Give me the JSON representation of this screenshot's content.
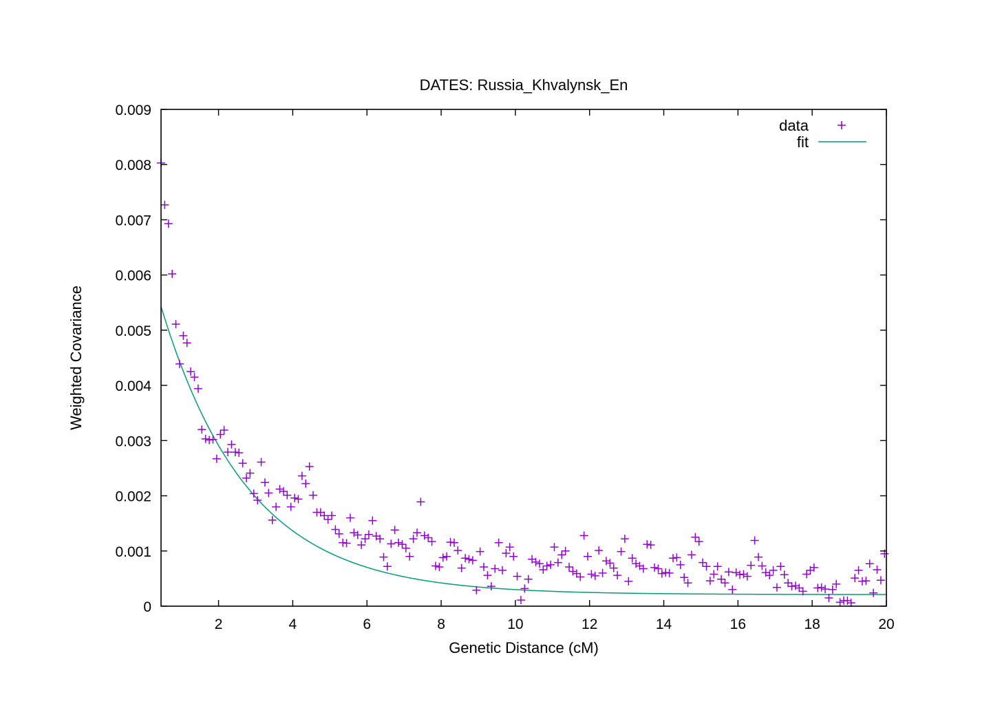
{
  "chart_data": {
    "type": "scatter",
    "title": "DATES: Russia_Khvalynsk_En",
    "xlabel": "Genetic Distance (cM)",
    "ylabel": "Weighted Covariance",
    "xlim": [
      0.45,
      20
    ],
    "ylim": [
      0,
      0.009
    ],
    "xticks": [
      2,
      4,
      6,
      8,
      10,
      12,
      14,
      16,
      18,
      20
    ],
    "yticks": [
      0,
      0.001,
      0.002,
      0.003,
      0.004,
      0.005,
      0.006,
      0.007,
      0.008,
      0.009
    ],
    "xtick_labels": [
      "2",
      "4",
      "6",
      "8",
      "10",
      "12",
      "14",
      "16",
      "18",
      "20"
    ],
    "ytick_labels": [
      "0",
      "0.001",
      "0.002",
      "0.003",
      "0.004",
      "0.005",
      "0.006",
      "0.007",
      "0.008",
      "0.009"
    ],
    "grid": false,
    "legend_position": "top-right",
    "colors": {
      "data": "#9400d3",
      "fit": "#009e73"
    },
    "series": [
      {
        "name": "data",
        "kind": "points",
        "marker": "plus",
        "x": [
          0.45,
          0.55,
          0.65,
          0.75,
          0.85,
          0.95,
          1.05,
          1.15,
          1.25,
          1.35,
          1.45,
          1.55,
          1.65,
          1.75,
          1.85,
          1.95,
          2.05,
          2.15,
          2.25,
          2.35,
          2.45,
          2.55,
          2.65,
          2.75,
          2.85,
          2.95,
          3.05,
          3.15,
          3.25,
          3.35,
          3.45,
          3.55,
          3.65,
          3.75,
          3.85,
          3.95,
          4.05,
          4.15,
          4.25,
          4.35,
          4.45,
          4.55,
          4.65,
          4.75,
          4.85,
          4.95,
          5.05,
          5.15,
          5.25,
          5.35,
          5.45,
          5.55,
          5.65,
          5.75,
          5.85,
          5.95,
          6.05,
          6.15,
          6.25,
          6.35,
          6.45,
          6.55,
          6.65,
          6.75,
          6.85,
          6.95,
          7.05,
          7.15,
          7.25,
          7.35,
          7.45,
          7.55,
          7.65,
          7.75,
          7.85,
          7.95,
          8.05,
          8.15,
          8.25,
          8.35,
          8.45,
          8.55,
          8.65,
          8.75,
          8.85,
          8.95,
          9.05,
          9.15,
          9.25,
          9.35,
          9.45,
          9.55,
          9.65,
          9.75,
          9.85,
          9.95,
          10.05,
          10.15,
          10.25,
          10.35,
          10.45,
          10.55,
          10.65,
          10.75,
          10.85,
          10.95,
          11.05,
          11.15,
          11.25,
          11.35,
          11.45,
          11.55,
          11.65,
          11.75,
          11.85,
          11.95,
          12.05,
          12.15,
          12.25,
          12.35,
          12.45,
          12.55,
          12.65,
          12.75,
          12.85,
          12.95,
          13.05,
          13.15,
          13.25,
          13.35,
          13.45,
          13.55,
          13.65,
          13.75,
          13.85,
          13.95,
          14.05,
          14.15,
          14.25,
          14.35,
          14.45,
          14.55,
          14.65,
          14.75,
          14.85,
          14.95,
          15.05,
          15.15,
          15.25,
          15.35,
          15.45,
          15.55,
          15.65,
          15.75,
          15.85,
          15.95,
          16.05,
          16.15,
          16.25,
          16.35,
          16.45,
          16.55,
          16.65,
          16.75,
          16.85,
          16.95,
          17.05,
          17.15,
          17.25,
          17.35,
          17.45,
          17.55,
          17.65,
          17.75,
          17.85,
          17.95,
          18.05,
          18.15,
          18.25,
          18.35,
          18.45,
          18.55,
          18.65,
          18.75,
          18.85,
          18.95,
          19.05,
          19.15,
          19.25,
          19.35,
          19.45,
          19.55,
          19.65,
          19.75,
          19.85,
          19.95
        ],
        "y": [
          0.00803,
          0.00727,
          0.00693,
          0.00602,
          0.00511,
          0.00439,
          0.0049,
          0.00477,
          0.00425,
          0.00415,
          0.00394,
          0.0032,
          0.00303,
          0.00301,
          0.00302,
          0.00267,
          0.00311,
          0.00319,
          0.00279,
          0.00293,
          0.00279,
          0.00278,
          0.00259,
          0.00232,
          0.00241,
          0.00204,
          0.00192,
          0.00261,
          0.00224,
          0.00205,
          0.00156,
          0.0018,
          0.00212,
          0.00208,
          0.00201,
          0.0018,
          0.00196,
          0.00194,
          0.00236,
          0.00222,
          0.00253,
          0.00201,
          0.0017,
          0.0017,
          0.00164,
          0.00157,
          0.00164,
          0.00139,
          0.00131,
          0.00115,
          0.00114,
          0.0016,
          0.00133,
          0.00129,
          0.00111,
          0.00122,
          0.0013,
          0.00155,
          0.00127,
          0.00122,
          0.00089,
          0.00072,
          0.00113,
          0.00138,
          0.00115,
          0.00112,
          0.00105,
          0.0009,
          0.00122,
          0.00133,
          0.00189,
          0.00128,
          0.00124,
          0.00117,
          0.00073,
          0.00071,
          0.00088,
          0.0009,
          0.00116,
          0.00115,
          0.00101,
          0.00069,
          0.00087,
          0.00085,
          0.00083,
          0.00029,
          0.00099,
          0.00071,
          0.00056,
          0.00036,
          0.00068,
          0.00115,
          0.00065,
          0.00096,
          0.00107,
          0.0009,
          0.00054,
          0.00011,
          0.00032,
          0.00049,
          0.00085,
          0.0008,
          0.00077,
          0.00066,
          0.00073,
          0.00075,
          0.00107,
          0.00079,
          0.00093,
          0.001,
          0.00071,
          0.00063,
          0.00059,
          0.00053,
          0.00128,
          0.0009,
          0.00058,
          0.00055,
          0.00101,
          0.0006,
          0.00082,
          0.00078,
          0.00069,
          0.00056,
          0.00099,
          0.00122,
          0.00045,
          0.00087,
          0.00077,
          0.00073,
          0.00068,
          0.00112,
          0.00111,
          0.0007,
          0.00068,
          0.00059,
          0.00061,
          0.0006,
          0.00087,
          0.00088,
          0.00075,
          0.00052,
          0.00042,
          0.00093,
          0.00125,
          0.00117,
          0.00079,
          0.00072,
          0.00046,
          0.00058,
          0.00072,
          0.00049,
          0.00042,
          0.00062,
          0.0003,
          0.00061,
          0.00057,
          0.00058,
          0.00054,
          0.00074,
          0.00119,
          0.00089,
          0.00073,
          0.00061,
          0.00056,
          0.00065,
          0.00034,
          0.00072,
          0.00057,
          0.00042,
          0.00036,
          0.00037,
          0.00033,
          0.00027,
          0.00058,
          0.00065,
          0.0007,
          0.00033,
          0.00034,
          0.00031,
          0.00015,
          0.0003,
          0.0004,
          7e-05,
          0.0001,
          0.0001,
          6e-05,
          0.00051,
          0.00065,
          0.00045,
          0.00046,
          0.00077,
          0.00024,
          0.00066,
          0.00047,
          0.00095
        ]
      },
      {
        "name": "fit",
        "kind": "line",
        "model": "exponential_decay",
        "amplitude": 0.00632,
        "rate": 0.425,
        "baseline": 0.00021,
        "x_range": [
          0.45,
          20
        ]
      }
    ]
  }
}
